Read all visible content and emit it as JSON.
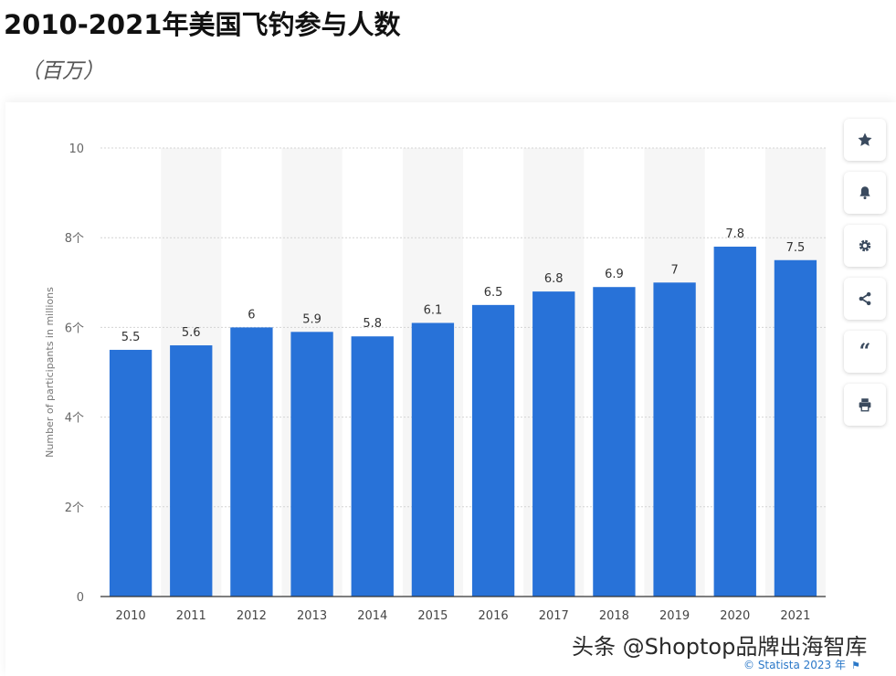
{
  "header": {
    "title": "2010-2021年美国飞钓参与人数",
    "subtitle": "（百万）"
  },
  "toolbar": {
    "icons": [
      "star-icon",
      "bell-icon",
      "gear-icon",
      "share-icon",
      "quote-icon",
      "print-icon"
    ]
  },
  "colors": {
    "bar": "#2872d8",
    "grid": "#d4d4d4",
    "stripe": "#f6f6f6",
    "credit": "#2b78c8"
  },
  "chart_data": {
    "type": "bar",
    "categories": [
      "2010",
      "2011",
      "2012",
      "2013",
      "2014",
      "2015",
      "2016",
      "2017",
      "2018",
      "2019",
      "2020",
      "2021"
    ],
    "values": [
      5.5,
      5.6,
      6,
      5.9,
      5.8,
      6.1,
      6.5,
      6.8,
      6.9,
      7,
      7.8,
      7.5
    ],
    "value_labels": [
      "5.5",
      "5.6",
      "6",
      "5.9",
      "5.8",
      "6.1",
      "6.5",
      "6.8",
      "6.9",
      "7",
      "7.8",
      "7.5"
    ],
    "ytick_labels": [
      "0",
      "2个",
      "4个",
      "6个",
      "8个",
      "10"
    ],
    "ytick_values": [
      0,
      2,
      4,
      6,
      8,
      10
    ],
    "ylabel": "Number of participants in millions",
    "xlabel": "",
    "ylim": [
      0,
      10
    ],
    "grid": true,
    "legend": "none"
  },
  "footer": {
    "watermark": "头条 @Shoptop品牌出海智库",
    "credit": "© Statista 2023 年"
  }
}
